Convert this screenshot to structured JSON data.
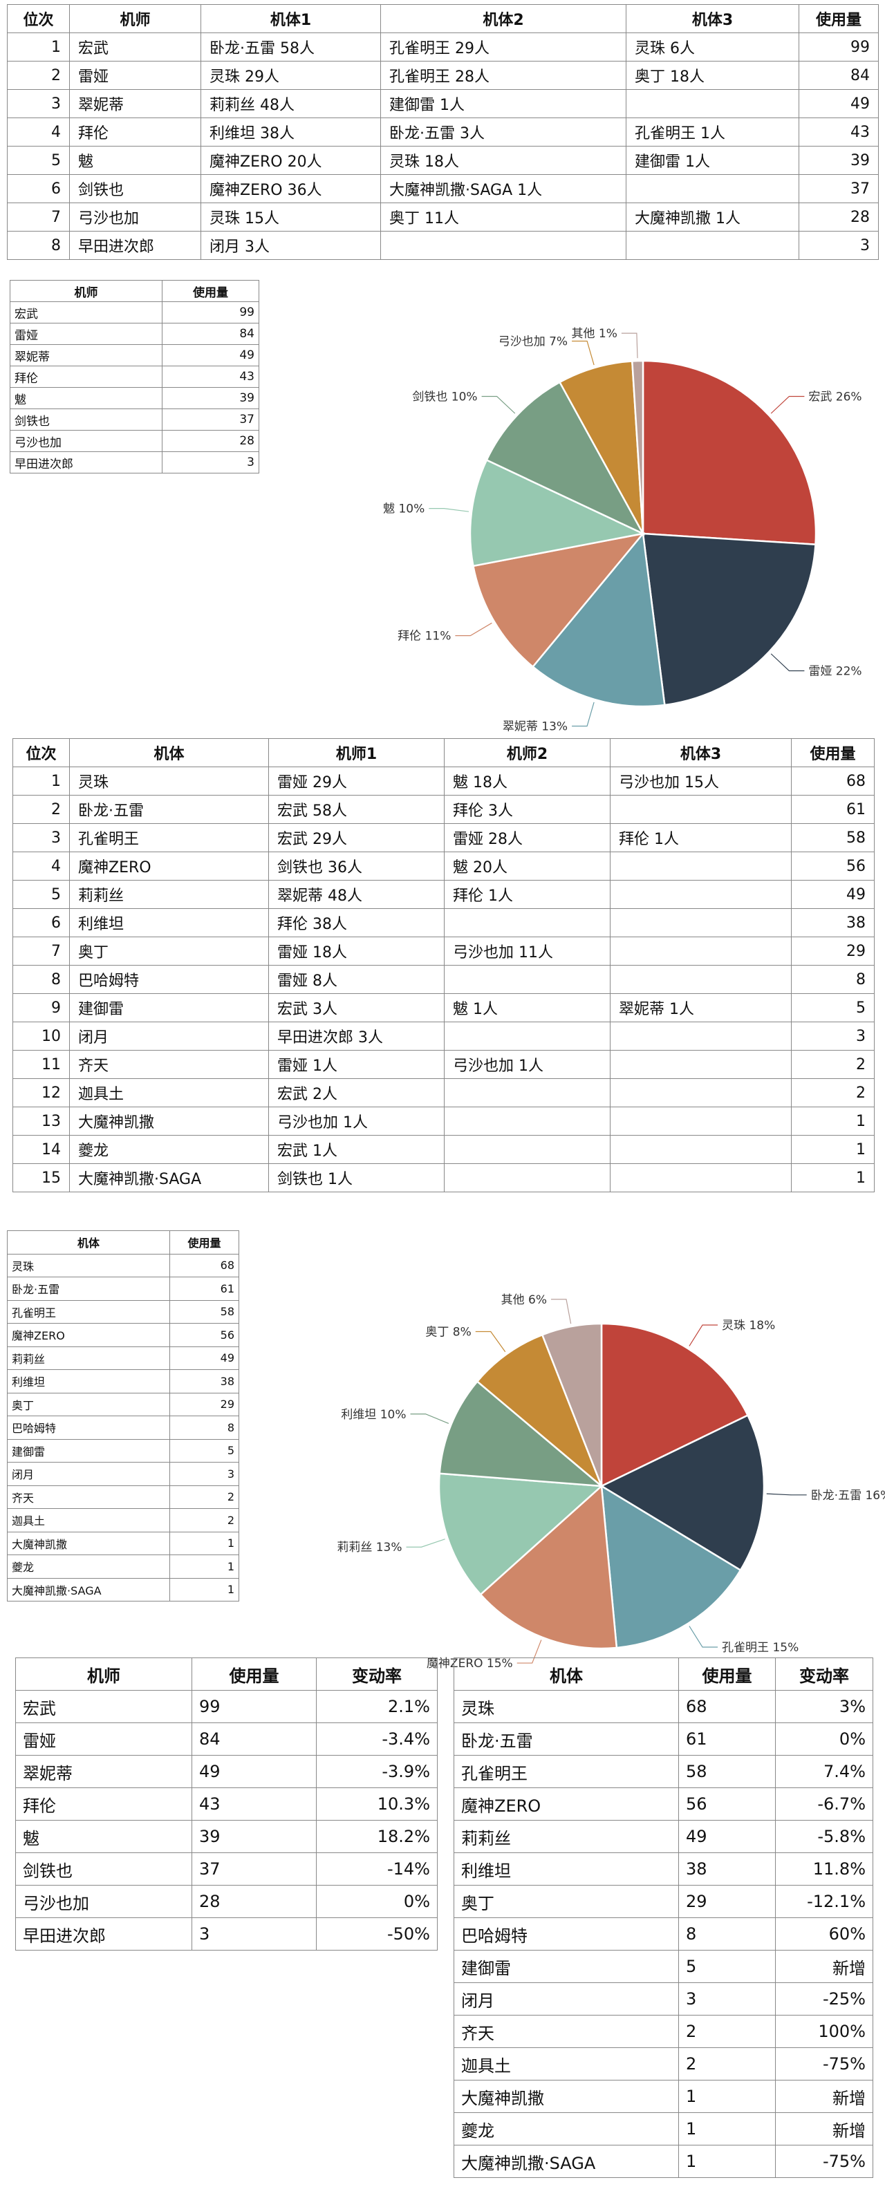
{
  "pilot_table": {
    "headers": [
      "位次",
      "机师",
      "机体1",
      "机体2",
      "机体3",
      "使用量"
    ],
    "rows": [
      {
        "rank": "1",
        "name": "宏武",
        "m1": "卧龙·五雷 58人",
        "m2": "孔雀明王 29人",
        "m3": "灵珠 6人",
        "usage": "99"
      },
      {
        "rank": "2",
        "name": "雷娅",
        "m1": "灵珠 29人",
        "m2": "孔雀明王 28人",
        "m3": "奥丁 18人",
        "usage": "84"
      },
      {
        "rank": "3",
        "name": "翠妮蒂",
        "m1": "莉莉丝 48人",
        "m2": "建御雷 1人",
        "m3": "",
        "usage": "49"
      },
      {
        "rank": "4",
        "name": "拜伦",
        "m1": "利维坦 38人",
        "m2": "卧龙·五雷 3人",
        "m3": "孔雀明王 1人",
        "usage": "43"
      },
      {
        "rank": "5",
        "name": "魃",
        "m1": "魔神ZERO 20人",
        "m2": "灵珠 18人",
        "m3": "建御雷 1人",
        "usage": "39"
      },
      {
        "rank": "6",
        "name": "剑铁也",
        "m1": "魔神ZERO 36人",
        "m2": "大魔神凯撒·SAGA 1人",
        "m3": "",
        "usage": "37"
      },
      {
        "rank": "7",
        "name": "弓沙也加",
        "m1": "灵珠 15人",
        "m2": "奥丁 11人",
        "m3": "大魔神凯撒 1人",
        "usage": "28"
      },
      {
        "rank": "8",
        "name": "早田进次郎",
        "m1": "闭月 3人",
        "m2": "",
        "m3": "",
        "usage": "3"
      }
    ]
  },
  "pilot_small": {
    "headers": [
      "机师",
      "使用量"
    ],
    "rows": [
      {
        "name": "宏武",
        "usage": "99"
      },
      {
        "name": "雷娅",
        "usage": "84"
      },
      {
        "name": "翠妮蒂",
        "usage": "49"
      },
      {
        "name": "拜伦",
        "usage": "43"
      },
      {
        "name": "魃",
        "usage": "39"
      },
      {
        "name": "剑铁也",
        "usage": "37"
      },
      {
        "name": "弓沙也加",
        "usage": "28"
      },
      {
        "name": "早田进次郎",
        "usage": "3"
      }
    ]
  },
  "mech_table": {
    "headers": [
      "位次",
      "机体",
      "机师1",
      "机师2",
      "机体3",
      "使用量"
    ],
    "rows": [
      {
        "rank": "1",
        "name": "灵珠",
        "p1": "雷娅 29人",
        "p2": "魃 18人",
        "p3": "弓沙也加 15人",
        "usage": "68"
      },
      {
        "rank": "2",
        "name": "卧龙·五雷",
        "p1": "宏武 58人",
        "p2": "拜伦 3人",
        "p3": "",
        "usage": "61"
      },
      {
        "rank": "3",
        "name": "孔雀明王",
        "p1": "宏武 29人",
        "p2": "雷娅 28人",
        "p3": "拜伦 1人",
        "usage": "58"
      },
      {
        "rank": "4",
        "name": "魔神ZERO",
        "p1": "剑铁也 36人",
        "p2": "魃 20人",
        "p3": "",
        "usage": "56"
      },
      {
        "rank": "5",
        "name": "莉莉丝",
        "p1": "翠妮蒂 48人",
        "p2": "拜伦 1人",
        "p3": "",
        "usage": "49"
      },
      {
        "rank": "6",
        "name": "利维坦",
        "p1": "拜伦 38人",
        "p2": "",
        "p3": "",
        "usage": "38"
      },
      {
        "rank": "7",
        "name": "奥丁",
        "p1": "雷娅 18人",
        "p2": "弓沙也加 11人",
        "p3": "",
        "usage": "29"
      },
      {
        "rank": "8",
        "name": "巴哈姆特",
        "p1": "雷娅 8人",
        "p2": "",
        "p3": "",
        "usage": "8"
      },
      {
        "rank": "9",
        "name": "建御雷",
        "p1": "宏武 3人",
        "p2": "魃 1人",
        "p3": "翠妮蒂 1人",
        "usage": "5"
      },
      {
        "rank": "10",
        "name": "闭月",
        "p1": "早田进次郎 3人",
        "p2": "",
        "p3": "",
        "usage": "3"
      },
      {
        "rank": "11",
        "name": "齐天",
        "p1": "雷娅 1人",
        "p2": "弓沙也加 1人",
        "p3": "",
        "usage": "2"
      },
      {
        "rank": "12",
        "name": "迦具土",
        "p1": "宏武 2人",
        "p2": "",
        "p3": "",
        "usage": "2"
      },
      {
        "rank": "13",
        "name": "大魔神凯撒",
        "p1": "弓沙也加 1人",
        "p2": "",
        "p3": "",
        "usage": "1"
      },
      {
        "rank": "14",
        "name": "夔龙",
        "p1": "宏武 1人",
        "p2": "",
        "p3": "",
        "usage": "1"
      },
      {
        "rank": "15",
        "name": "大魔神凯撒·SAGA",
        "p1": "剑铁也 1人",
        "p2": "",
        "p3": "",
        "usage": "1"
      }
    ]
  },
  "mech_small": {
    "headers": [
      "机体",
      "使用量"
    ],
    "rows": [
      {
        "name": "灵珠",
        "usage": "68"
      },
      {
        "name": "卧龙·五雷",
        "usage": "61"
      },
      {
        "name": "孔雀明王",
        "usage": "58"
      },
      {
        "name": "魔神ZERO",
        "usage": "56"
      },
      {
        "name": "莉莉丝",
        "usage": "49"
      },
      {
        "name": "利维坦",
        "usage": "38"
      },
      {
        "name": "奥丁",
        "usage": "29"
      },
      {
        "name": "巴哈姆特",
        "usage": "8"
      },
      {
        "name": "建御雷",
        "usage": "5"
      },
      {
        "name": "闭月",
        "usage": "3"
      },
      {
        "name": "齐天",
        "usage": "2"
      },
      {
        "name": "迦具土",
        "usage": "2"
      },
      {
        "name": "大魔神凯撒",
        "usage": "1"
      },
      {
        "name": "夔龙",
        "usage": "1"
      },
      {
        "name": "大魔神凯撒·SAGA",
        "usage": "1"
      }
    ]
  },
  "pilot_change": {
    "headers": [
      "机师",
      "使用量",
      "变动率"
    ],
    "rows": [
      {
        "name": "宏武",
        "usage": "99",
        "rate": "2.1%"
      },
      {
        "name": "雷娅",
        "usage": "84",
        "rate": "-3.4%"
      },
      {
        "name": "翠妮蒂",
        "usage": "49",
        "rate": "-3.9%"
      },
      {
        "name": "拜伦",
        "usage": "43",
        "rate": "10.3%"
      },
      {
        "name": "魃",
        "usage": "39",
        "rate": "18.2%"
      },
      {
        "name": "剑铁也",
        "usage": "37",
        "rate": "-14%"
      },
      {
        "name": "弓沙也加",
        "usage": "28",
        "rate": "0%"
      },
      {
        "name": "早田进次郎",
        "usage": "3",
        "rate": "-50%"
      }
    ]
  },
  "mech_change": {
    "headers": [
      "机体",
      "使用量",
      "变动率"
    ],
    "rows": [
      {
        "name": "灵珠",
        "usage": "68",
        "rate": "3%"
      },
      {
        "name": "卧龙·五雷",
        "usage": "61",
        "rate": "0%"
      },
      {
        "name": "孔雀明王",
        "usage": "58",
        "rate": "7.4%"
      },
      {
        "name": "魔神ZERO",
        "usage": "56",
        "rate": "-6.7%"
      },
      {
        "name": "莉莉丝",
        "usage": "49",
        "rate": "-5.8%"
      },
      {
        "name": "利维坦",
        "usage": "38",
        "rate": "11.8%"
      },
      {
        "name": "奥丁",
        "usage": "29",
        "rate": "-12.1%"
      },
      {
        "name": "巴哈姆特",
        "usage": "8",
        "rate": "60%"
      },
      {
        "name": "建御雷",
        "usage": "5",
        "rate": "新增"
      },
      {
        "name": "闭月",
        "usage": "3",
        "rate": "-25%"
      },
      {
        "name": "齐天",
        "usage": "2",
        "rate": "100%"
      },
      {
        "name": "迦具土",
        "usage": "2",
        "rate": "-75%"
      },
      {
        "name": "大魔神凯撒",
        "usage": "1",
        "rate": "新增"
      },
      {
        "name": "夔龙",
        "usage": "1",
        "rate": "新增"
      },
      {
        "name": "大魔神凯撒·SAGA",
        "usage": "1",
        "rate": "-75%"
      }
    ]
  },
  "chart_data": [
    {
      "type": "pie",
      "slices": [
        {
          "label": "宏武",
          "value": 26,
          "color": "#c0443a"
        },
        {
          "label": "雷娅",
          "value": 22,
          "color": "#2f3e4e"
        },
        {
          "label": "翠妮蒂",
          "value": 13,
          "color": "#6a9ea8"
        },
        {
          "label": "拜伦",
          "value": 11,
          "color": "#cf8769"
        },
        {
          "label": "魃",
          "value": 10,
          "color": "#96c8b0"
        },
        {
          "label": "剑铁也",
          "value": 10,
          "color": "#789e84"
        },
        {
          "label": "弓沙也加",
          "value": 7,
          "color": "#c58a35"
        },
        {
          "label": "其他",
          "value": 1,
          "color": "#b9a19c"
        }
      ],
      "labels": [
        "宏武 26%",
        "雷娅 22%",
        "翠妮蒂 13%",
        "拜伦 11%",
        "魃 10%",
        "剑铁也 10%",
        "弓沙也加 7%",
        "其他 1%"
      ]
    },
    {
      "type": "pie",
      "slices": [
        {
          "label": "灵珠",
          "value": 18,
          "color": "#c0443a"
        },
        {
          "label": "卧龙·五雷",
          "value": 16,
          "color": "#2f3e4e"
        },
        {
          "label": "孔雀明王",
          "value": 15,
          "color": "#6a9ea8"
        },
        {
          "label": "魔神ZERO",
          "value": 15,
          "color": "#cf8769"
        },
        {
          "label": "莉莉丝",
          "value": 13,
          "color": "#96c8b0"
        },
        {
          "label": "利维坦",
          "value": 10,
          "color": "#789e84"
        },
        {
          "label": "奥丁",
          "value": 8,
          "color": "#c58a35"
        },
        {
          "label": "其他",
          "value": 6,
          "color": "#b9a19c"
        }
      ],
      "labels": [
        "灵珠 18%",
        "卧龙·五雷 16%",
        "孔雀明王 15%",
        "魔神ZERO 15%",
        "莉莉丝 13%",
        "利维坦 10%",
        "奥丁 8%",
        "其他 6%"
      ]
    }
  ]
}
